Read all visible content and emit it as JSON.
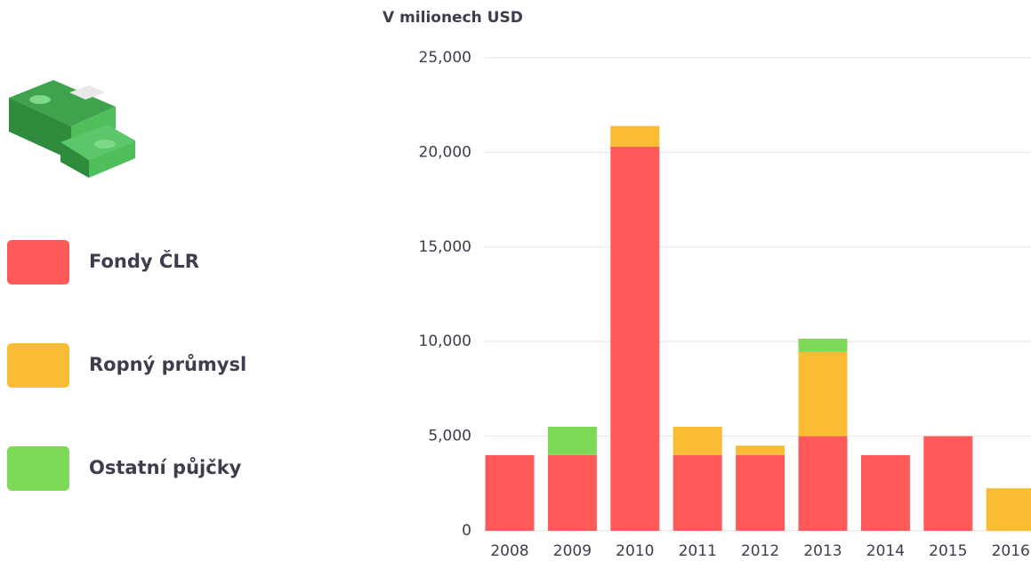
{
  "chart_data": {
    "type": "stacked-bar",
    "y_title": "V milionech USD",
    "categories": [
      "2008",
      "2009",
      "2010",
      "2011",
      "2012",
      "2013",
      "2014",
      "2015",
      "2016"
    ],
    "series": [
      {
        "name": "Fondy ČLR",
        "color": "#ff5a5a",
        "values": [
          4000,
          4000,
          20300,
          4000,
          4000,
          5000,
          4000,
          5000,
          0
        ]
      },
      {
        "name": "Ropný průmysl",
        "color": "#fbbc35",
        "values": [
          0,
          0,
          1100,
          1500,
          500,
          4450,
          0,
          0,
          2250
        ]
      },
      {
        "name": "Ostatní půjčky",
        "color": "#7ed957",
        "values": [
          0,
          1500,
          0,
          0,
          0,
          700,
          0,
          0,
          0
        ]
      }
    ],
    "ylim": [
      0,
      25000
    ],
    "yticks": [
      0,
      {
        "value": 5000,
        "label": "5,000"
      },
      {
        "value": 10000,
        "label": "10,000"
      },
      {
        "value": 15000,
        "label": "15,000"
      },
      {
        "value": 20000,
        "label": "20,000"
      },
      {
        "value": 25000,
        "label": "25,000"
      }
    ],
    "grid": true
  }
}
